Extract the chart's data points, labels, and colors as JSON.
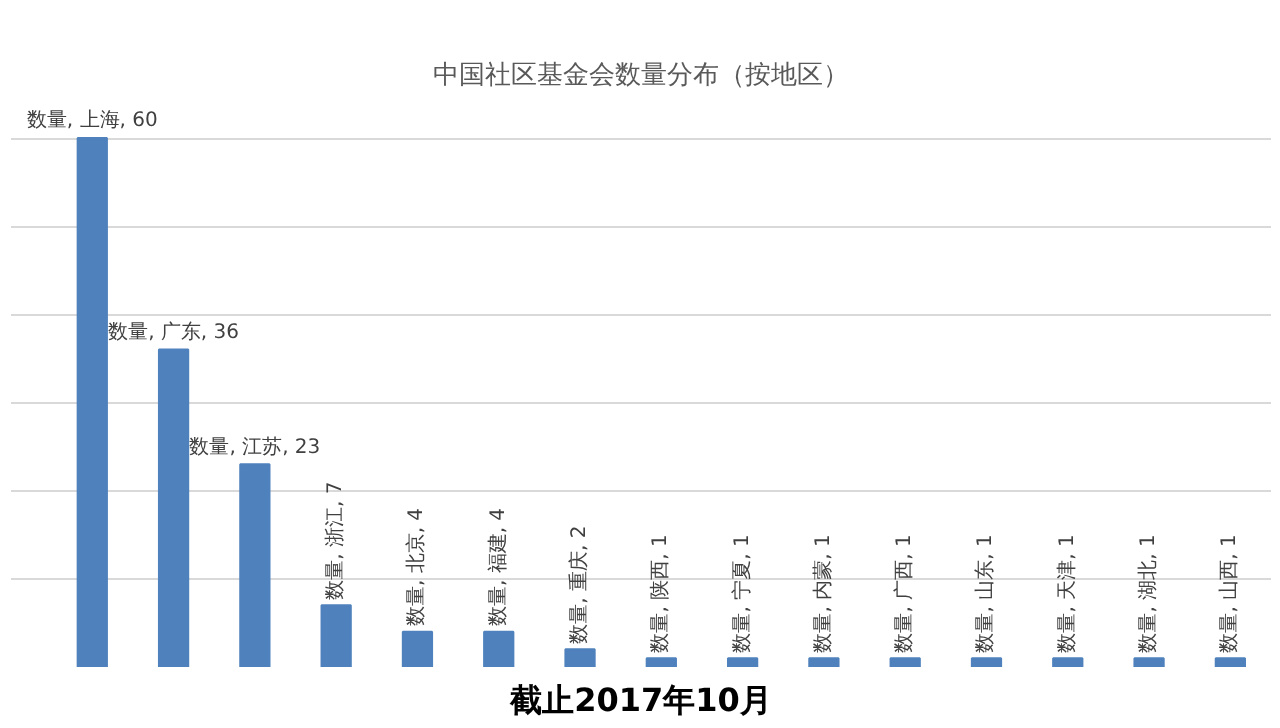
{
  "chart_data": {
    "type": "bar",
    "title": "中国社区基金会数量分布（按地区）",
    "categories": [
      null,
      null,
      null,
      null,
      null,
      null,
      null,
      null,
      null,
      null,
      null,
      null,
      null,
      null,
      null
    ],
    "series": [
      {
        "color": "#4f81bd",
        "values": [
          60,
          36,
          23,
          7,
          4,
          4,
          2,
          1,
          1,
          1,
          1,
          1,
          1,
          1,
          1
        ],
        "value_labels": [
          "数量, 上海, 60",
          "数量, 广东, 36",
          "数量, 江苏, 23",
          "数量, 浙江, 7",
          "数量, 北京, 4",
          "数量, 福建, 4",
          "数量, 重庆, 2",
          "数量, 陕西, 1",
          "数量, 宁夏, 1",
          "数量, 内蒙, 1",
          "数量, 广西, 1",
          "数量, 山东, 1",
          "数量, 天津, 1",
          "数量, 湖北, 1",
          "数量, 山西, 1"
        ]
      }
    ],
    "grid": "y",
    "tick_labels": false,
    "annotations": [
      "截止2017年10月"
    ]
  }
}
